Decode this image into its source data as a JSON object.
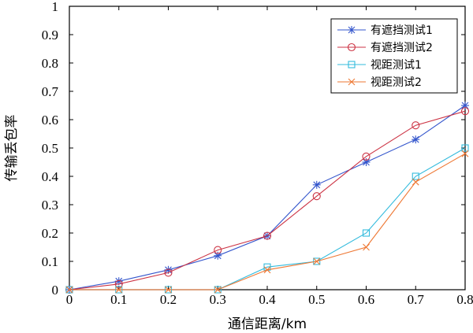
{
  "chart_data": {
    "type": "line",
    "xlabel": "通信距离/km",
    "ylabel": "传输丢包率",
    "xlim": [
      0,
      0.8
    ],
    "ylim": [
      0,
      1
    ],
    "xticks": [
      "0",
      "0.1",
      "0.2",
      "0.3",
      "0.4",
      "0.5",
      "0.6",
      "0.7",
      "0.8"
    ],
    "yticks": [
      "0",
      "0.1",
      "0.2",
      "0.3",
      "0.4",
      "0.5",
      "0.6",
      "0.7",
      "0.8",
      "0.9",
      "1"
    ],
    "grid": false,
    "legend_position": "top-right",
    "x": [
      0,
      0.1,
      0.2,
      0.3,
      0.4,
      0.5,
      0.6,
      0.7,
      0.8
    ],
    "series": [
      {
        "name": "有遮挡测试1",
        "color": "#3355cc",
        "marker": "asterisk",
        "values": [
          0.0,
          0.03,
          0.07,
          0.12,
          0.19,
          0.37,
          0.45,
          0.53,
          0.65
        ]
      },
      {
        "name": "有遮挡测试2",
        "color": "#cc3344",
        "marker": "circle",
        "values": [
          0.0,
          0.02,
          0.06,
          0.14,
          0.19,
          0.33,
          0.47,
          0.58,
          0.63
        ]
      },
      {
        "name": "视距测试1",
        "color": "#33bbdd",
        "marker": "square",
        "values": [
          0.0,
          0.0,
          0.0,
          0.0,
          0.08,
          0.1,
          0.2,
          0.4,
          0.5
        ]
      },
      {
        "name": "视距测试2",
        "color": "#ee7733",
        "marker": "cross",
        "values": [
          0.0,
          0.0,
          0.0,
          0.0,
          0.07,
          0.1,
          0.15,
          0.38,
          0.48
        ]
      }
    ]
  }
}
